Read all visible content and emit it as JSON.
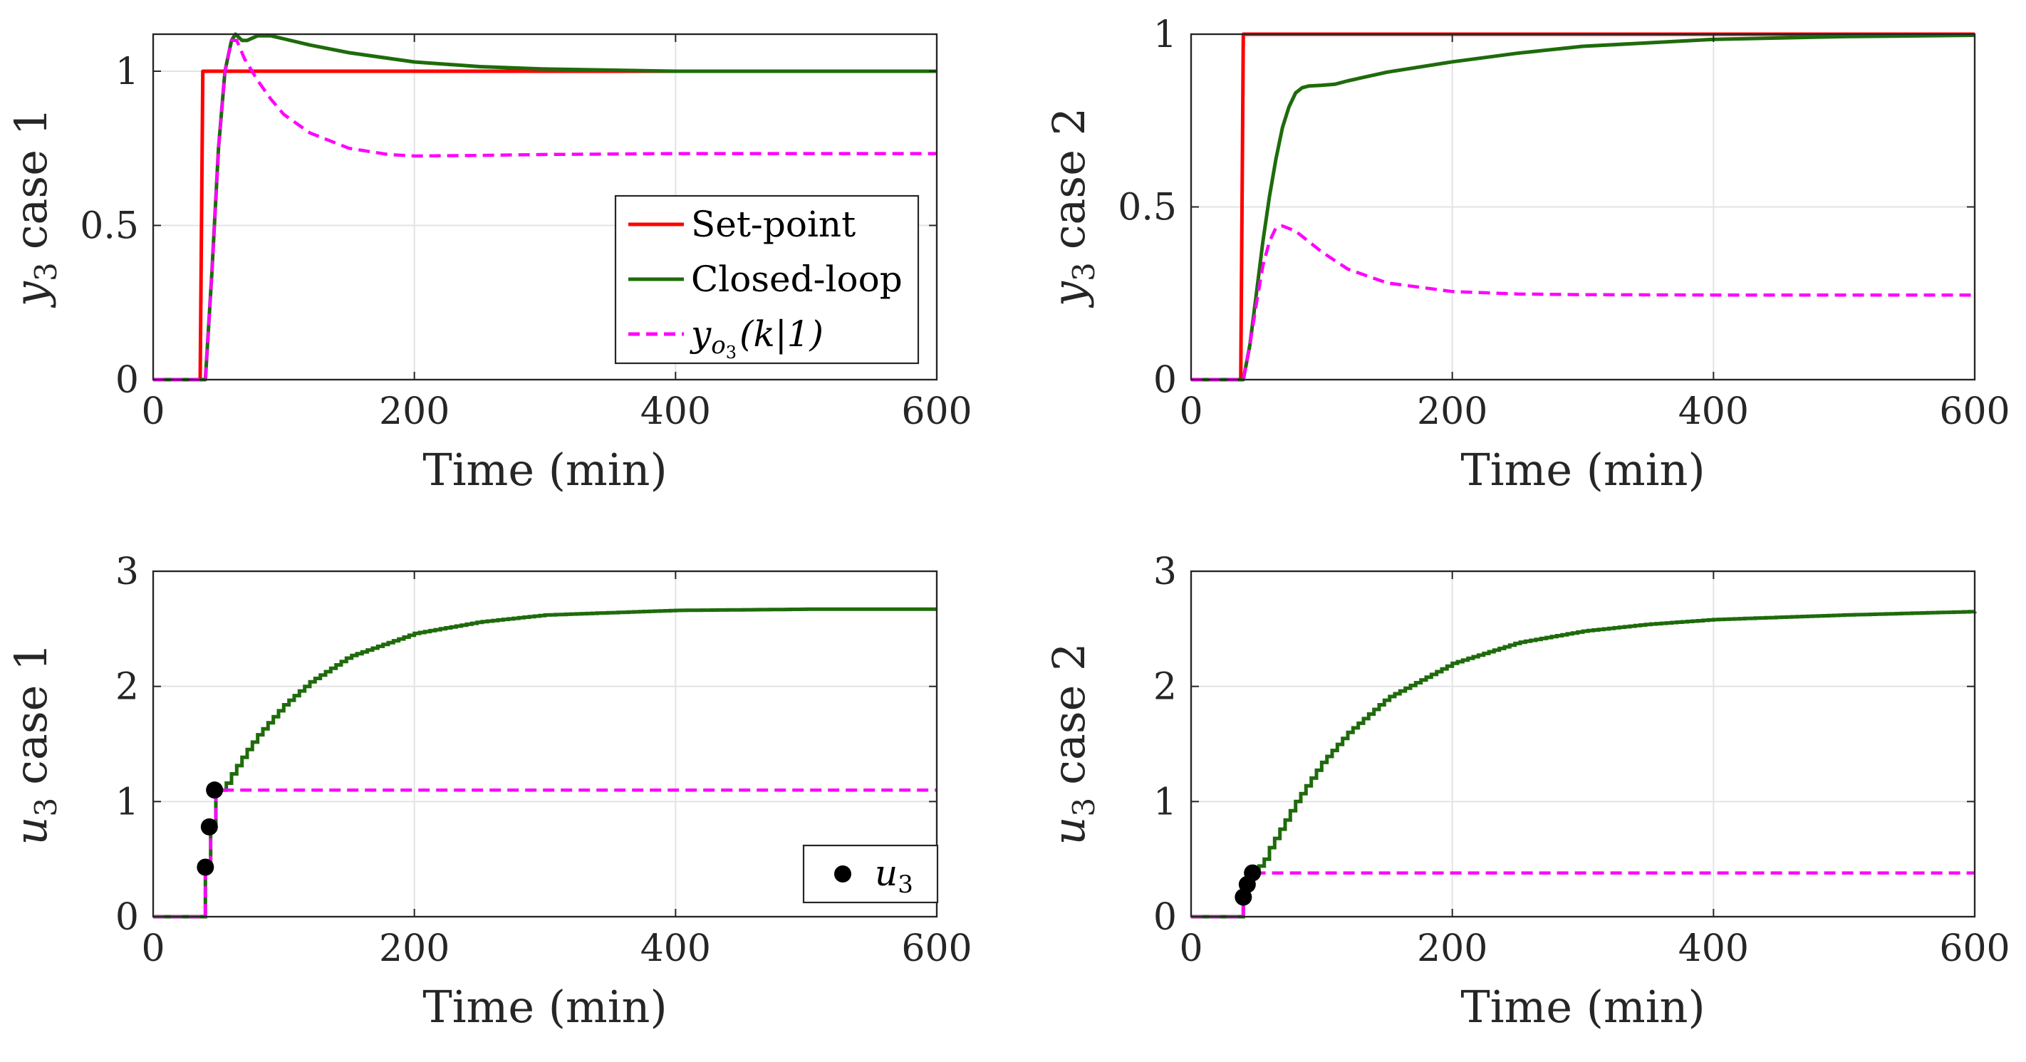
{
  "colors": {
    "setpoint": "#ff0000",
    "closed_loop": "#1e6b0b",
    "prediction": "#ff00ff",
    "marker": "#000000",
    "axis": "#262626",
    "grid": "#e3e3e3"
  },
  "legend_top_left": {
    "setpoint": "Set-point",
    "closed_loop": "Closed-loop",
    "prediction_base": "y",
    "prediction_sub": "o",
    "prediction_subsub": "3",
    "prediction_args": "(k|1)"
  },
  "legend_bottom_left": {
    "marker_base": "u",
    "marker_sub": "3"
  },
  "chart_data": [
    {
      "id": "p1",
      "type": "line",
      "ylabel": {
        "base": "y",
        "sub": "3",
        "text": "case 1"
      },
      "xlabel": "Time (min)",
      "xlim": [
        0,
        600
      ],
      "ylim": [
        0,
        1.12
      ],
      "xticks": [
        0,
        200,
        400,
        600
      ],
      "yticks": [
        0,
        0.5,
        1
      ],
      "xtick_labels": [
        "0",
        "200",
        "400",
        "600"
      ],
      "ytick_labels": [
        "0",
        "0.5",
        "1"
      ],
      "grid": true,
      "legend": "inside-lower-right",
      "series": [
        {
          "name": "Set-point",
          "style": "solid",
          "color_key": "setpoint",
          "x": [
            0,
            36,
            38,
            600
          ],
          "y": [
            0,
            0,
            1,
            1
          ]
        },
        {
          "name": "Closed-loop",
          "style": "solid",
          "color_key": "closed_loop",
          "x": [
            0,
            40,
            45,
            50,
            55,
            60,
            63,
            68,
            72,
            80,
            90,
            100,
            120,
            150,
            200,
            250,
            300,
            400,
            500,
            600
          ],
          "y": [
            0,
            0,
            0.35,
            0.75,
            1.0,
            1.1,
            1.12,
            1.1,
            1.1,
            1.115,
            1.115,
            1.105,
            1.085,
            1.06,
            1.03,
            1.015,
            1.007,
            1.0,
            1.0,
            1.0
          ]
        },
        {
          "name": "y_o3(k|1)",
          "style": "dashed",
          "color_key": "prediction",
          "x": [
            0,
            40,
            45,
            50,
            55,
            60,
            64,
            70,
            80,
            90,
            100,
            120,
            150,
            180,
            200,
            250,
            300,
            400,
            500,
            600
          ],
          "y": [
            0,
            0,
            0.35,
            0.75,
            1.0,
            1.1,
            1.1,
            1.04,
            0.97,
            0.91,
            0.86,
            0.8,
            0.75,
            0.73,
            0.725,
            0.727,
            0.73,
            0.733,
            0.733,
            0.733
          ]
        }
      ]
    },
    {
      "id": "p2",
      "type": "line",
      "ylabel": {
        "base": "y",
        "sub": "3",
        "text": "case 2"
      },
      "xlabel": "Time (min)",
      "xlim": [
        0,
        600
      ],
      "ylim": [
        0,
        1
      ],
      "xticks": [
        0,
        200,
        400,
        600
      ],
      "yticks": [
        0,
        0.5,
        1
      ],
      "xtick_labels": [
        "0",
        "200",
        "400",
        "600"
      ],
      "ytick_labels": [
        "0",
        "0.5",
        "1"
      ],
      "grid": true,
      "legend": "none",
      "series": [
        {
          "name": "Set-point",
          "style": "solid",
          "color_key": "setpoint",
          "x": [
            0,
            38,
            40,
            600
          ],
          "y": [
            0,
            0,
            1,
            1
          ]
        },
        {
          "name": "Closed-loop",
          "style": "solid",
          "color_key": "closed_loop",
          "x": [
            0,
            40,
            45,
            50,
            55,
            60,
            65,
            70,
            75,
            80,
            85,
            90,
            100,
            110,
            120,
            150,
            200,
            250,
            300,
            400,
            500,
            600
          ],
          "y": [
            0,
            0,
            0.1,
            0.25,
            0.4,
            0.53,
            0.64,
            0.73,
            0.79,
            0.83,
            0.845,
            0.85,
            0.852,
            0.855,
            0.865,
            0.89,
            0.92,
            0.945,
            0.965,
            0.985,
            0.993,
            0.997
          ]
        },
        {
          "name": "y_o3(k|1)",
          "style": "dashed",
          "color_key": "prediction",
          "x": [
            0,
            40,
            45,
            50,
            55,
            60,
            65,
            70,
            80,
            90,
            100,
            120,
            150,
            200,
            250,
            300,
            400,
            500,
            600
          ],
          "y": [
            0,
            0,
            0.1,
            0.22,
            0.33,
            0.4,
            0.44,
            0.445,
            0.43,
            0.4,
            0.37,
            0.32,
            0.28,
            0.255,
            0.248,
            0.246,
            0.245,
            0.245,
            0.245
          ]
        }
      ]
    },
    {
      "id": "p3",
      "type": "line",
      "ylabel": {
        "base": "u",
        "sub": "3",
        "text": "case 1"
      },
      "xlabel": "Time (min)",
      "xlim": [
        0,
        600
      ],
      "ylim": [
        0,
        3
      ],
      "xticks": [
        0,
        200,
        400,
        600
      ],
      "yticks": [
        0,
        1,
        2,
        3
      ],
      "xtick_labels": [
        "0",
        "200",
        "400",
        "600"
      ],
      "ytick_labels": [
        "0",
        "1",
        "2",
        "3"
      ],
      "grid": true,
      "legend": "inside-lower-right",
      "step_after_x": 52,
      "step_width": 4,
      "series": [
        {
          "name": "Closed-loop",
          "style": "stairs",
          "color_key": "closed_loop",
          "x": [
            0,
            40,
            44,
            48,
            52,
            56,
            60,
            70,
            80,
            100,
            120,
            150,
            200,
            250,
            300,
            400,
            500,
            600
          ],
          "y": [
            0,
            0.43,
            0.78,
            1.1,
            1.1,
            1.16,
            1.24,
            1.42,
            1.58,
            1.84,
            2.04,
            2.26,
            2.46,
            2.56,
            2.62,
            2.66,
            2.67,
            2.67
          ]
        },
        {
          "name": "prediction",
          "style": "dashed-stairs",
          "color_key": "prediction",
          "x": [
            0,
            40,
            44,
            48,
            600
          ],
          "y": [
            0,
            0.43,
            0.78,
            1.1,
            1.1
          ]
        },
        {
          "name": "u3",
          "style": "markers",
          "color_key": "marker",
          "x": [
            40,
            43,
            47
          ],
          "y": [
            0.43,
            0.78,
            1.1
          ]
        }
      ]
    },
    {
      "id": "p4",
      "type": "line",
      "ylabel": {
        "base": "u",
        "sub": "3",
        "text": "case 2"
      },
      "xlabel": "Time (min)",
      "xlim": [
        0,
        600
      ],
      "ylim": [
        0,
        3
      ],
      "xticks": [
        0,
        200,
        400,
        600
      ],
      "yticks": [
        0,
        1,
        2,
        3
      ],
      "xtick_labels": [
        "0",
        "200",
        "400",
        "600"
      ],
      "ytick_labels": [
        "0",
        "1",
        "2",
        "3"
      ],
      "grid": true,
      "legend": "none",
      "step_after_x": 52,
      "step_width": 4,
      "series": [
        {
          "name": "Closed-loop",
          "style": "stairs",
          "color_key": "closed_loop",
          "x": [
            0,
            40,
            43,
            46,
            49,
            52,
            56,
            60,
            70,
            80,
            100,
            120,
            150,
            200,
            250,
            300,
            350,
            400,
            500,
            600
          ],
          "y": [
            0,
            0.17,
            0.28,
            0.38,
            0.38,
            0.44,
            0.5,
            0.6,
            0.8,
            1.0,
            1.34,
            1.6,
            1.9,
            2.2,
            2.38,
            2.48,
            2.54,
            2.58,
            2.62,
            2.65
          ]
        },
        {
          "name": "prediction",
          "style": "dashed-stairs",
          "color_key": "prediction",
          "x": [
            0,
            40,
            43,
            46,
            49,
            600
          ],
          "y": [
            0,
            0.17,
            0.28,
            0.38,
            0.38,
            0.38
          ]
        },
        {
          "name": "u3",
          "style": "markers",
          "color_key": "marker",
          "x": [
            40,
            43,
            47
          ],
          "y": [
            0.17,
            0.28,
            0.38
          ]
        }
      ]
    }
  ]
}
